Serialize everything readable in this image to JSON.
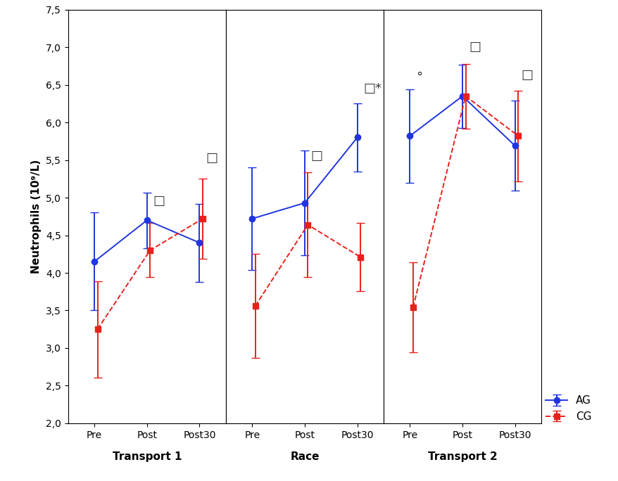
{
  "chart_data": [
    {
      "type": "line",
      "xlabel": "Transport 1",
      "ylabel": "Neutrophils (10⁹/L)",
      "categories": [
        "Pre",
        "Post",
        "Post30"
      ],
      "ylim": [
        2.0,
        7.5
      ],
      "yticks": [
        {
          "value": 2.0,
          "label": "2,0"
        },
        {
          "value": 2.5,
          "label": "2,5"
        },
        {
          "value": 3.0,
          "label": "3,0"
        },
        {
          "value": 3.5,
          "label": "3,5"
        },
        {
          "value": 4.0,
          "label": "4,0"
        },
        {
          "value": 4.5,
          "label": "4,5"
        },
        {
          "value": 5.0,
          "label": "5,0"
        },
        {
          "value": 5.5,
          "label": "5,5"
        },
        {
          "value": 6.0,
          "label": "6,0"
        },
        {
          "value": 6.5,
          "label": "6,5"
        },
        {
          "value": 7.0,
          "label": "7,0"
        },
        {
          "value": 7.5,
          "label": "7,5"
        }
      ],
      "series": [
        {
          "name": "AG",
          "color": "#1f35e0",
          "marker": "o",
          "line_style": "solid",
          "values": [
            4.15,
            4.7,
            4.4
          ],
          "errors": [
            0.65,
            0.37,
            0.52
          ]
        },
        {
          "name": "CG",
          "color": "#e8211b",
          "marker": "s",
          "line_style": "dashed",
          "values": [
            3.25,
            4.3,
            4.72
          ],
          "errors": [
            0.64,
            0.36,
            0.53
          ]
        }
      ],
      "annotations": [
        {
          "text": "□",
          "x": "Post",
          "y": 4.95
        },
        {
          "text": "□",
          "x": "Post30",
          "y": 5.52
        }
      ]
    },
    {
      "type": "line",
      "xlabel": "Race",
      "tick_labels": "x",
      "categories": [
        "Pre",
        "Post",
        "Post30"
      ],
      "ylim": [
        2.0,
        7.5
      ],
      "series": [
        {
          "name": "AG",
          "color": "#1f35e0",
          "marker": "o",
          "line_style": "solid",
          "values": [
            4.72,
            4.93,
            5.8
          ],
          "errors": [
            0.68,
            0.7,
            0.45
          ]
        },
        {
          "name": "CG",
          "color": "#e8211b",
          "marker": "s",
          "line_style": "dashed",
          "values": [
            3.56,
            4.64,
            4.21
          ],
          "errors": [
            0.69,
            0.7,
            0.45
          ]
        }
      ],
      "annotations": [
        {
          "text": "□",
          "x": "Post",
          "y": 5.55
        },
        {
          "text": "□*",
          "x": "Post30",
          "y": 6.45
        }
      ]
    },
    {
      "type": "line",
      "xlabel": "Transport 2",
      "tick_labels": "x",
      "legend": "lower right",
      "categories": [
        "Pre",
        "Post",
        "Post30"
      ],
      "ylim": [
        2.0,
        7.5
      ],
      "series": [
        {
          "name": "AG",
          "color": "#1f35e0",
          "marker": "o",
          "line_style": "solid",
          "values": [
            5.82,
            6.35,
            5.69
          ],
          "errors": [
            0.62,
            0.42,
            0.6
          ]
        },
        {
          "name": "CG",
          "color": "#e8211b",
          "marker": "s",
          "line_style": "dashed",
          "values": [
            3.54,
            6.35,
            5.82
          ],
          "errors": [
            0.6,
            0.43,
            0.6
          ]
        }
      ],
      "annotations": [
        {
          "text": "°",
          "x": "Pre",
          "y": 6.6
        },
        {
          "text": "□",
          "x": "Post",
          "y": 7.0
        },
        {
          "text": "□",
          "x": "Post30",
          "y": 6.63
        }
      ]
    }
  ]
}
